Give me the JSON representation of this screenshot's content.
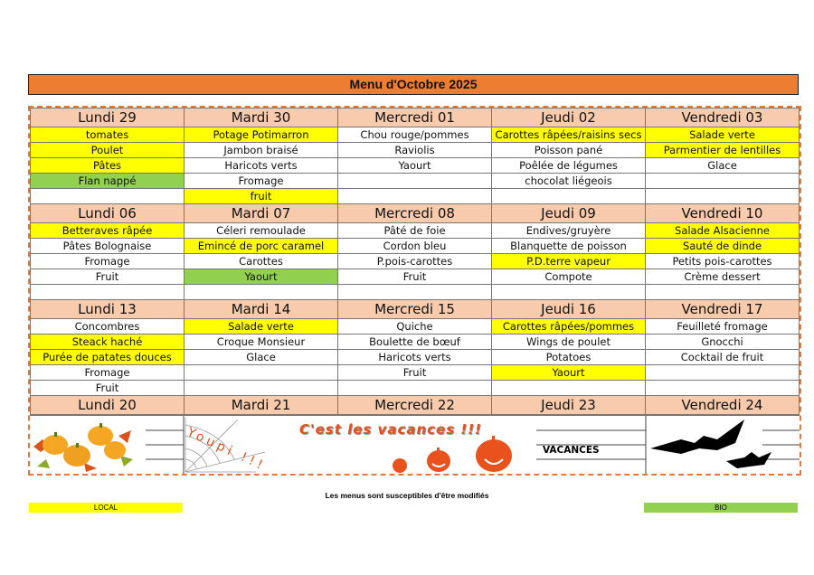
{
  "title": "Menu d'Octobre 2025",
  "colors": {
    "title": "#ed7d31",
    "header": "#f8cbad",
    "local": "#ffff00",
    "bio": "#92d050",
    "border": "#e07a3a"
  },
  "weeks": [
    {
      "days": [
        {
          "name": "Lundi 29",
          "items": [
            {
              "t": "tomates",
              "m": "local"
            },
            {
              "t": "Poulet",
              "m": "local"
            },
            {
              "t": "Pâtes",
              "m": "local"
            },
            {
              "t": "Flan nappé",
              "m": "bio"
            },
            {
              "t": "",
              "m": ""
            }
          ]
        },
        {
          "name": "Mardi 30",
          "items": [
            {
              "t": "Potage Potimarron",
              "m": "local"
            },
            {
              "t": "Jambon braisé",
              "m": ""
            },
            {
              "t": "Haricots verts",
              "m": ""
            },
            {
              "t": "Fromage",
              "m": ""
            },
            {
              "t": "fruit",
              "m": "local"
            }
          ]
        },
        {
          "name": "Mercredi 01",
          "items": [
            {
              "t": "Chou rouge/pommes",
              "m": ""
            },
            {
              "t": "Raviolis",
              "m": ""
            },
            {
              "t": "Yaourt",
              "m": ""
            },
            {
              "t": "",
              "m": ""
            },
            {
              "t": "",
              "m": ""
            }
          ]
        },
        {
          "name": "Jeudi 02",
          "items": [
            {
              "t": "Carottes râpées/raisins secs",
              "m": "local"
            },
            {
              "t": "Poisson pané",
              "m": ""
            },
            {
              "t": "Poêlée de légumes",
              "m": ""
            },
            {
              "t": "chocolat liégeois",
              "m": ""
            },
            {
              "t": "",
              "m": ""
            }
          ]
        },
        {
          "name": "Vendredi 03",
          "items": [
            {
              "t": "Salade verte",
              "m": "local"
            },
            {
              "t": "Parmentier de lentilles",
              "m": "local"
            },
            {
              "t": "Glace",
              "m": ""
            },
            {
              "t": "",
              "m": ""
            },
            {
              "t": "",
              "m": ""
            }
          ]
        }
      ]
    },
    {
      "days": [
        {
          "name": "Lundi 06",
          "items": [
            {
              "t": "Betteraves râpée",
              "m": "local"
            },
            {
              "t": "Pâtes Bolognaise",
              "m": ""
            },
            {
              "t": "Fromage",
              "m": ""
            },
            {
              "t": "Fruit",
              "m": ""
            },
            {
              "t": "",
              "m": ""
            }
          ]
        },
        {
          "name": "Mardi 07",
          "items": [
            {
              "t": "Céleri remoulade",
              "m": ""
            },
            {
              "t": "Emincé de porc caramel",
              "m": "local"
            },
            {
              "t": "Carottes",
              "m": ""
            },
            {
              "t": "Yaourt",
              "m": "bio"
            },
            {
              "t": "",
              "m": ""
            }
          ]
        },
        {
          "name": "Mercredi 08",
          "items": [
            {
              "t": "Pâté de foie",
              "m": ""
            },
            {
              "t": "Cordon bleu",
              "m": ""
            },
            {
              "t": "P.pois-carottes",
              "m": ""
            },
            {
              "t": "Fruit",
              "m": ""
            },
            {
              "t": "",
              "m": ""
            }
          ]
        },
        {
          "name": "Jeudi 09",
          "items": [
            {
              "t": "Endives/gruyère",
              "m": ""
            },
            {
              "t": "Blanquette de poisson",
              "m": ""
            },
            {
              "t": "P.D.terre vapeur",
              "m": "local"
            },
            {
              "t": "Compote",
              "m": ""
            },
            {
              "t": "",
              "m": ""
            }
          ]
        },
        {
          "name": "Vendredi 10",
          "items": [
            {
              "t": "Salade Alsacienne",
              "m": "local"
            },
            {
              "t": "Sauté de dinde",
              "m": "local"
            },
            {
              "t": "Petits pois-carottes",
              "m": ""
            },
            {
              "t": "Crème dessert",
              "m": ""
            },
            {
              "t": "",
              "m": ""
            }
          ]
        }
      ]
    },
    {
      "days": [
        {
          "name": "Lundi 13",
          "items": [
            {
              "t": "Concombres",
              "m": ""
            },
            {
              "t": "Steack haché",
              "m": "local"
            },
            {
              "t": "Purée de patates douces",
              "m": "local"
            },
            {
              "t": "Fromage",
              "m": ""
            },
            {
              "t": "Fruit",
              "m": ""
            }
          ]
        },
        {
          "name": "Mardi 14",
          "items": [
            {
              "t": "Salade verte",
              "m": "local"
            },
            {
              "t": "Croque Monsieur",
              "m": ""
            },
            {
              "t": "Glace",
              "m": ""
            },
            {
              "t": "",
              "m": ""
            },
            {
              "t": "",
              "m": ""
            }
          ]
        },
        {
          "name": "Mercredi 15",
          "items": [
            {
              "t": "Quiche",
              "m": ""
            },
            {
              "t": "Boulette de bœuf",
              "m": ""
            },
            {
              "t": "Haricots verts",
              "m": ""
            },
            {
              "t": "Fruit",
              "m": ""
            },
            {
              "t": "",
              "m": ""
            }
          ]
        },
        {
          "name": "Jeudi 16",
          "items": [
            {
              "t": "Carottes râpées/pommes",
              "m": "local"
            },
            {
              "t": "Wings de poulet",
              "m": ""
            },
            {
              "t": "Potatoes",
              "m": ""
            },
            {
              "t": "Yaourt",
              "m": "local"
            },
            {
              "t": "",
              "m": ""
            }
          ]
        },
        {
          "name": "Vendredi 17",
          "items": [
            {
              "t": "Feuilleté fromage",
              "m": ""
            },
            {
              "t": "Gnocchi",
              "m": ""
            },
            {
              "t": "Cocktail de fruit",
              "m": ""
            },
            {
              "t": "",
              "m": ""
            },
            {
              "t": "",
              "m": ""
            }
          ]
        }
      ]
    }
  ],
  "holiday_week": {
    "days": [
      "Lundi 20",
      "Mardi 21",
      "Mercredi 22",
      "Jeudi 23",
      "Vendredi 24"
    ],
    "banner": "C'est les vacances !!!",
    "youpi": "Youpi !!!",
    "label": "VACANCES",
    "images": [
      "pumpkins-leaves",
      "spider-web",
      "jack-o-lanterns",
      "bats"
    ]
  },
  "footer": {
    "note": "Les menus sont susceptibles d'être modifiés",
    "local_label": "LOCAL",
    "bio_label": "BIO"
  }
}
